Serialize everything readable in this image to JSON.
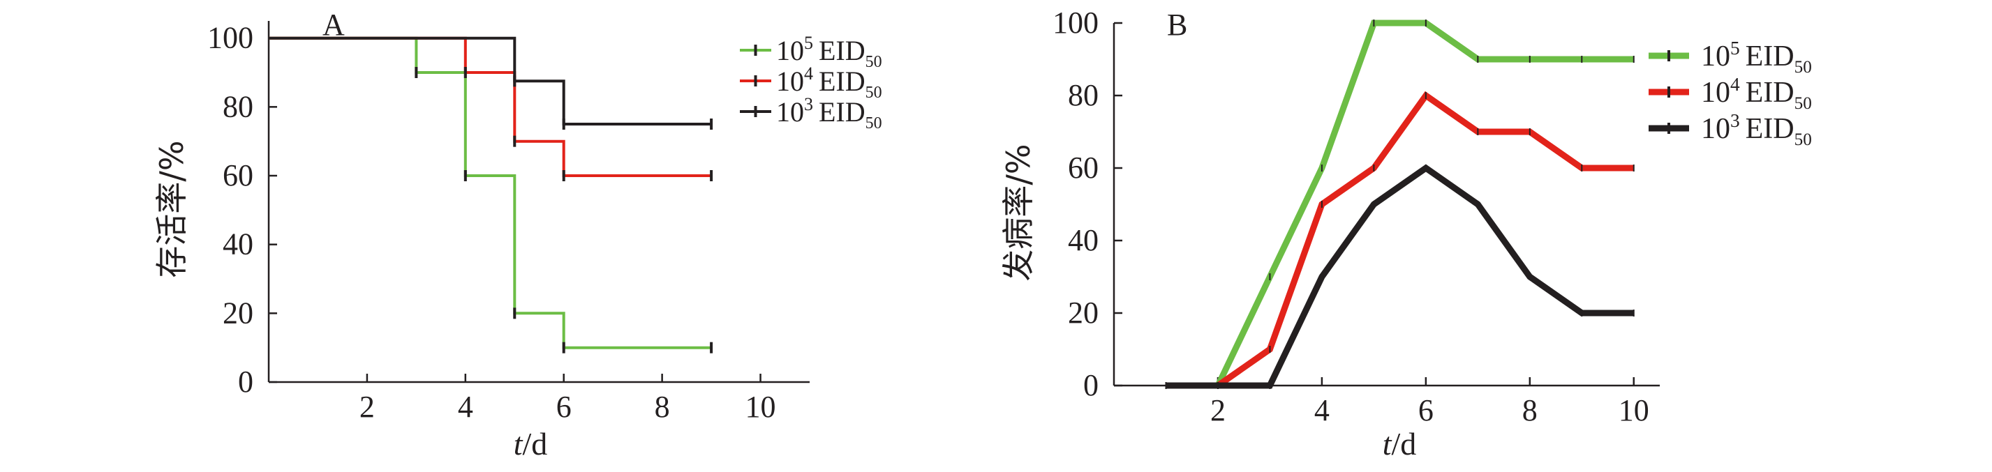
{
  "chart_data": [
    {
      "panel_label": "A",
      "type": "line",
      "step": true,
      "xlabel_italic": "t",
      "xlabel_unit": "/d",
      "ylabel": "存活率/%",
      "xlim": [
        0,
        11
      ],
      "ylim": [
        0,
        105
      ],
      "xticks": [
        2,
        4,
        6,
        8,
        10
      ],
      "yticks": [
        0,
        20,
        40,
        60,
        80,
        100
      ],
      "grid": false,
      "legend_position": "top-right",
      "series": [
        {
          "base": "10",
          "exp": "5",
          "unit": "EID",
          "sub": "50",
          "color": "#6cbd45",
          "points": [
            [
              0,
              100
            ],
            [
              3,
              100
            ],
            [
              3,
              90
            ],
            [
              4,
              90
            ],
            [
              4,
              60
            ],
            [
              5,
              60
            ],
            [
              5,
              20
            ],
            [
              6,
              20
            ],
            [
              6,
              10
            ],
            [
              9,
              10
            ]
          ],
          "censor": [
            [
              3,
              90
            ],
            [
              4,
              60
            ],
            [
              5,
              20
            ],
            [
              6,
              10
            ],
            [
              9,
              10
            ]
          ]
        },
        {
          "base": "10",
          "exp": "4",
          "unit": "EID",
          "sub": "50",
          "color": "#e2231a",
          "points": [
            [
              0,
              100
            ],
            [
              4,
              100
            ],
            [
              4,
              90
            ],
            [
              5,
              90
            ],
            [
              5,
              70
            ],
            [
              6,
              70
            ],
            [
              6,
              60
            ],
            [
              9,
              60
            ]
          ],
          "censor": [
            [
              4,
              90
            ],
            [
              5,
              70
            ],
            [
              6,
              60
            ],
            [
              9,
              60
            ]
          ]
        },
        {
          "base": "10",
          "exp": "3",
          "unit": "EID",
          "sub": "50",
          "color": "#231f20",
          "points": [
            [
              0,
              100
            ],
            [
              5,
              100
            ],
            [
              5,
              87.5
            ],
            [
              6,
              87.5
            ],
            [
              6,
              75
            ],
            [
              9,
              75
            ]
          ],
          "censor": [
            [
              5,
              87.5
            ],
            [
              6,
              75
            ],
            [
              9,
              75
            ]
          ]
        }
      ]
    },
    {
      "panel_label": "B",
      "type": "line",
      "step": false,
      "xlabel_italic": "t",
      "xlabel_unit": "/d",
      "ylabel": "发病率/%",
      "xlim": [
        0,
        10.5
      ],
      "ylim": [
        0,
        100
      ],
      "xticks": [
        2,
        4,
        6,
        8,
        10
      ],
      "yticks": [
        0,
        20,
        40,
        60,
        80,
        100
      ],
      "grid": false,
      "legend_position": "top-right",
      "series": [
        {
          "base": "10",
          "exp": "5",
          "unit": "EID",
          "sub": "50",
          "color": "#6cbd45",
          "x": [
            2,
            3,
            4,
            5,
            6,
            7,
            8,
            9,
            10
          ],
          "y": [
            0,
            30,
            60,
            100,
            100,
            90,
            90,
            90,
            90
          ]
        },
        {
          "base": "10",
          "exp": "4",
          "unit": "EID",
          "sub": "50",
          "color": "#e2231a",
          "x": [
            2,
            3,
            4,
            5,
            6,
            7,
            8,
            9,
            10
          ],
          "y": [
            0,
            10,
            50,
            60,
            80,
            70,
            70,
            60,
            60
          ]
        },
        {
          "base": "10",
          "exp": "3",
          "unit": "EID",
          "sub": "50",
          "color": "#231f20",
          "x": [
            1,
            2,
            3,
            4,
            5,
            6,
            7,
            8,
            9,
            10
          ],
          "y": [
            0,
            0,
            0,
            30,
            50,
            60,
            50,
            30,
            20,
            20
          ]
        }
      ]
    }
  ]
}
